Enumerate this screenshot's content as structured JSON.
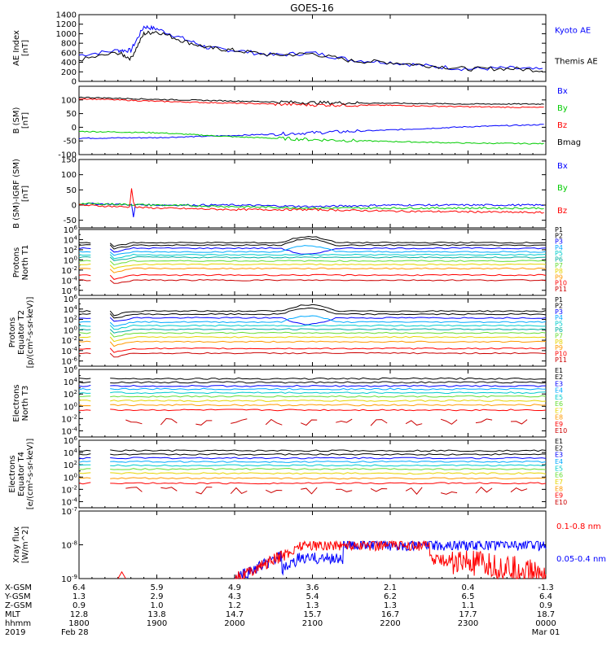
{
  "title": "GOES-16",
  "colors": {
    "black": "#000000",
    "blue": "#0000ff",
    "green": "#00cc00",
    "red": "#ff0000",
    "purple": "#8a2be2",
    "magenta": "#d000d0",
    "cyan": "#00bcd4",
    "teal": "#00b0a0",
    "lightgreen": "#66dd33",
    "yellow": "#e6d400",
    "orange": "#ff9900",
    "darkred": "#cc0000"
  },
  "chart_data": [
    {
      "type": "line",
      "ylabel": "AE Index\n[nT]",
      "ylim": [
        0,
        1400
      ],
      "yticks": [
        "0",
        "200",
        "400",
        "600",
        "800",
        "1000",
        "1200",
        "1400"
      ],
      "legend": [
        {
          "name": "Kyoto AE",
          "color": "#0000ff"
        },
        {
          "name": "Themis AE",
          "color": "#000000"
        }
      ],
      "x": [
        "1800",
        "1830",
        "1840",
        "1850",
        "1900",
        "1920",
        "1940",
        "2000",
        "2030",
        "2100",
        "2130",
        "2200",
        "2230",
        "2300",
        "2330",
        "2400"
      ],
      "series": [
        {
          "name": "Kyoto AE",
          "values": [
            550,
            650,
            650,
            1150,
            1100,
            900,
            700,
            650,
            550,
            600,
            450,
            400,
            320,
            260,
            280,
            240
          ]
        },
        {
          "name": "Themis AE",
          "values": [
            450,
            600,
            480,
            1000,
            1050,
            850,
            700,
            650,
            550,
            580,
            430,
            400,
            330,
            260,
            270,
            230
          ]
        }
      ]
    },
    {
      "type": "line",
      "ylabel": "B (SM)\n[nT]",
      "ylim": [
        -100,
        150
      ],
      "yticks": [
        "-100",
        "-50",
        "0",
        "50",
        "100"
      ],
      "legend": [
        {
          "name": "Bx",
          "color": "#0000ff"
        },
        {
          "name": "By",
          "color": "#00cc00"
        },
        {
          "name": "Bz",
          "color": "#ff0000"
        },
        {
          "name": "Bmag",
          "color": "#000000"
        }
      ],
      "x": [
        "1800",
        "1900",
        "2000",
        "2100",
        "2200",
        "2300",
        "2400"
      ],
      "series": [
        {
          "name": "Bx",
          "values": [
            -40,
            -38,
            -30,
            -20,
            -10,
            2,
            10
          ]
        },
        {
          "name": "By",
          "values": [
            -15,
            -20,
            -35,
            -45,
            -52,
            -58,
            -60
          ]
        },
        {
          "name": "Bz",
          "values": [
            105,
            95,
            88,
            82,
            80,
            75,
            72
          ]
        },
        {
          "name": "Bmag",
          "values": [
            110,
            102,
            96,
            90,
            88,
            85,
            85
          ]
        }
      ]
    },
    {
      "type": "line",
      "ylabel": "B (SM)-IGRF (SM)\n[nT]",
      "ylim": [
        -75,
        150
      ],
      "yticks": [
        "-50",
        "0",
        "50",
        "100",
        "150"
      ],
      "legend": [
        {
          "name": "Bx",
          "color": "#0000ff"
        },
        {
          "name": "By",
          "color": "#00cc00"
        },
        {
          "name": "Bz",
          "color": "#ff0000"
        }
      ],
      "x": [
        "1800",
        "1900",
        "2000",
        "2100",
        "2200",
        "2300",
        "2400"
      ],
      "series": [
        {
          "name": "Bx",
          "values": [
            5,
            0,
            0,
            -5,
            0,
            0,
            0
          ]
        },
        {
          "name": "By",
          "values": [
            5,
            0,
            -5,
            -10,
            -10,
            -10,
            -10
          ]
        },
        {
          "name": "Bz",
          "values": [
            0,
            -10,
            -15,
            -15,
            -20,
            -22,
            -25
          ]
        }
      ]
    },
    {
      "type": "line",
      "ylabel": "Protons\nNorth T1",
      "yscale": "log",
      "ylim": [
        1e-07,
        1000000.0
      ],
      "yticks": [
        "10^-6",
        "10^-4",
        "10^-2",
        "10^0",
        "10^2",
        "10^4",
        "10^6"
      ],
      "legend": [
        "P1",
        "P2",
        "P3",
        "P4",
        "P5",
        "P6",
        "P7",
        "P8",
        "P9",
        "P10",
        "P11"
      ],
      "legend_colors": [
        "#000000",
        "#000000",
        "#0000ff",
        "#00aaff",
        "#00cccc",
        "#00b0a0",
        "#66dd33",
        "#e6d400",
        "#ff9900",
        "#ff0000",
        "#cc0000"
      ]
    },
    {
      "type": "line",
      "ylabel": "Protons\nEquator T2\n[p/(cm²-s-sr-keV)]",
      "yscale": "log",
      "ylim": [
        1e-07,
        1000000.0
      ],
      "yticks": [
        "10^-6",
        "10^-4",
        "10^-2",
        "10^0",
        "10^2",
        "10^4",
        "10^6"
      ],
      "legend": [
        "P1",
        "P2",
        "P3",
        "P4",
        "P5",
        "P6",
        "P7",
        "P8",
        "P9",
        "P10",
        "P11"
      ]
    },
    {
      "type": "line",
      "ylabel": "Electrons\nNorth T3",
      "yscale": "log",
      "ylim": [
        1e-05,
        1000000.0
      ],
      "yticks": [
        "10^-4",
        "10^-2",
        "10^0",
        "10^2",
        "10^4",
        "10^6"
      ],
      "legend": [
        "E1",
        "E2",
        "E3",
        "E4",
        "E5",
        "E6",
        "E7",
        "E8",
        "E9",
        "E10"
      ]
    },
    {
      "type": "line",
      "ylabel": "Electrons\nEquator T4\n[e/(cm²-s-sr-keV)]",
      "yscale": "log",
      "ylim": [
        1e-05,
        1000000.0
      ],
      "yticks": [
        "10^-4",
        "10^-2",
        "10^0",
        "10^2",
        "10^4",
        "10^6"
      ],
      "legend": [
        "E1",
        "E2",
        "E3",
        "E4",
        "E5",
        "E6",
        "E7",
        "E8",
        "E9",
        "E10"
      ]
    },
    {
      "type": "line",
      "ylabel": "Xray flux\n[W/m^2]",
      "yscale": "log",
      "ylim": [
        1e-09,
        1e-07
      ],
      "yticks": [
        "10^-9",
        "10^-8",
        "10^-7"
      ],
      "legend": [
        {
          "name": "0.1-0.8 nm",
          "color": "#ff0000"
        },
        {
          "name": "0.05-0.4 nm",
          "color": "#0000ff"
        }
      ]
    }
  ],
  "xaxis": {
    "row_labels": [
      "X-GSM",
      "Y-GSM",
      "Z-GSM",
      "MLT",
      "hhmm",
      "2019"
    ],
    "columns": [
      {
        "xgsm": "6.4",
        "ygsm": "1.3",
        "zgsm": "0.9",
        "mlt": "12.8",
        "hhmm": "1800",
        "date": "Feb 28"
      },
      {
        "xgsm": "5.9",
        "ygsm": "2.9",
        "zgsm": "1.0",
        "mlt": "13.8",
        "hhmm": "1900",
        "date": ""
      },
      {
        "xgsm": "4.9",
        "ygsm": "4.3",
        "zgsm": "1.2",
        "mlt": "14.7",
        "hhmm": "2000",
        "date": ""
      },
      {
        "xgsm": "3.6",
        "ygsm": "5.4",
        "zgsm": "1.3",
        "mlt": "15.7",
        "hhmm": "2100",
        "date": ""
      },
      {
        "xgsm": "2.1",
        "ygsm": "6.2",
        "zgsm": "1.3",
        "mlt": "16.7",
        "hhmm": "2200",
        "date": ""
      },
      {
        "xgsm": "0.4",
        "ygsm": "6.5",
        "zgsm": "1.1",
        "mlt": "17.7",
        "hhmm": "2300",
        "date": ""
      },
      {
        "xgsm": "-1.3",
        "ygsm": "6.4",
        "zgsm": "0.9",
        "mlt": "18.7",
        "hhmm": "0000",
        "date": "Mar 01"
      }
    ]
  }
}
